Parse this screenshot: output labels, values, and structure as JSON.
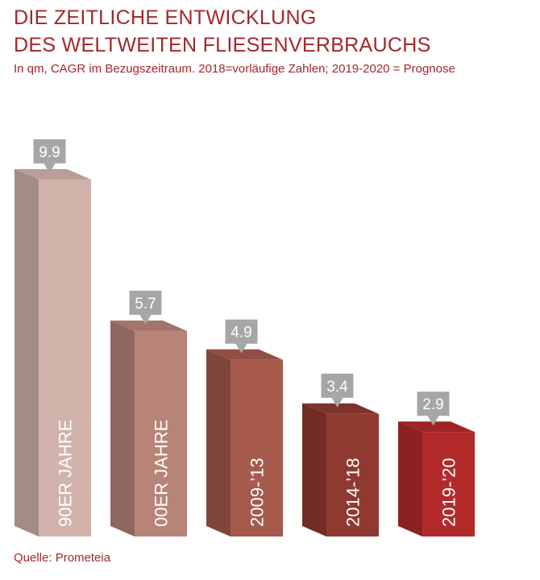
{
  "title_line1": "DIE ZEITLICHE ENTWICKLUNG",
  "title_line2": "DES WELTWEITEN FLIESENVERBRAUCHS",
  "subtitle": "In qm, CAGR im Bezugszeitraum. 2018=vorläufige Zahlen; 2019-2020 = Prognose",
  "source": "Quelle: Prometeia",
  "colors": {
    "title": "#a3272c",
    "label_box": "#a6a6a6",
    "bars": [
      "#d1b3ac",
      "#b88478",
      "#a55a4c",
      "#8f3a30",
      "#b32a2a"
    ]
  },
  "chart_data": {
    "type": "bar",
    "style": "3d",
    "categories": [
      "90ER JAHRE",
      "00ER JAHRE",
      "2009-’13",
      "2014-’18",
      "2019-’20"
    ],
    "values": [
      9.9,
      5.7,
      4.9,
      3.4,
      2.9
    ],
    "value_labels": [
      "9.9",
      "5.7",
      "4.9",
      "3.4",
      "2.9"
    ],
    "ylim": [
      0,
      10.5
    ],
    "grid": false,
    "legend": "none"
  }
}
